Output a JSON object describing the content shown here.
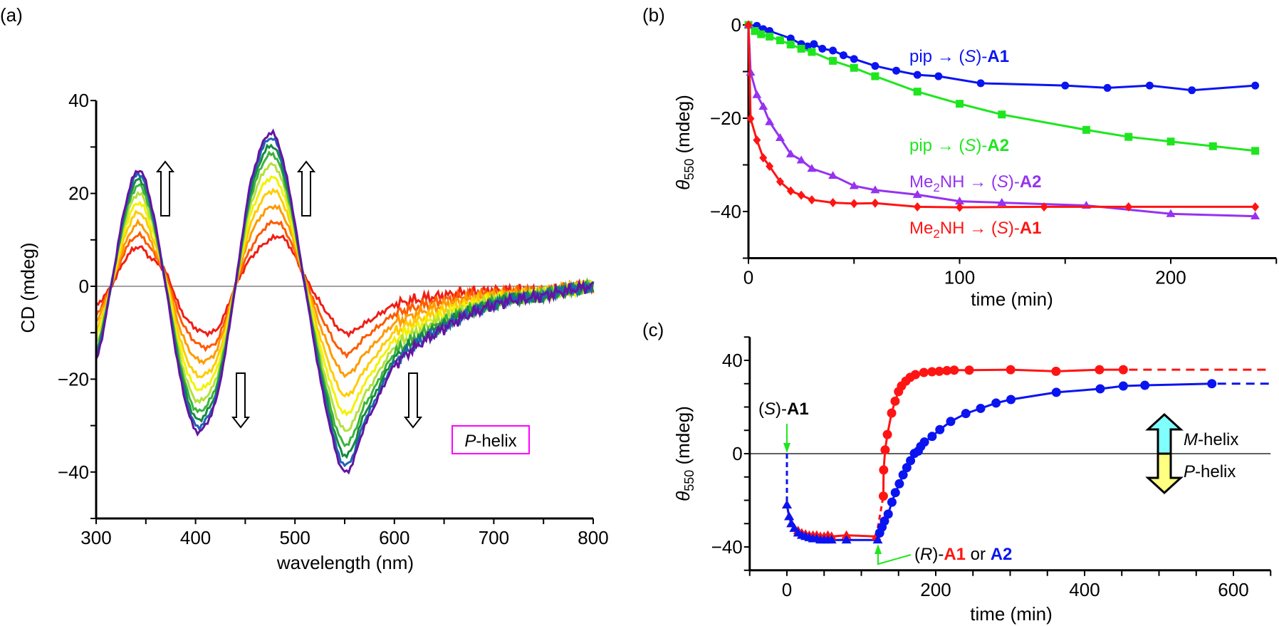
{
  "panel_labels": {
    "a": "(a)",
    "b": "(b)",
    "c": "(c)"
  },
  "chart_data": [
    {
      "type": "line",
      "xlabel": "wavelength (nm)",
      "ylabel": "CD (mdeg)",
      "xlim": [
        300,
        800
      ],
      "ylim": [
        -50,
        40
      ],
      "xticks": [
        "300",
        "400",
        "500",
        "600",
        "700",
        "800"
      ],
      "yticks": [
        "40",
        "20",
        "0",
        "−20",
        "−40"
      ],
      "x": [
        300,
        315,
        330,
        343,
        355,
        370,
        385,
        400,
        415,
        425,
        440,
        455,
        475,
        490,
        510,
        530,
        550,
        570,
        600,
        650,
        700,
        750,
        800
      ],
      "series": [
        {
          "color": "#f01e14",
          "values": [
            -4,
            0,
            6,
            8.5,
            6,
            3,
            -5,
            -9,
            -10,
            -8,
            0,
            6,
            10,
            10,
            2,
            -5,
            -10,
            -8,
            -4,
            -2,
            -1,
            -1,
            0
          ]
        },
        {
          "color": "#ff5a00",
          "values": [
            -6,
            0,
            8,
            11,
            8,
            2.5,
            -7,
            -12,
            -13,
            -10,
            0,
            8,
            13.5,
            12,
            1.5,
            -8,
            -14.5,
            -11,
            -6,
            -3,
            -1.5,
            -1,
            0
          ]
        },
        {
          "color": "#ff9a00",
          "values": [
            -7.5,
            0,
            9.5,
            13.5,
            9.5,
            2,
            -9.5,
            -15.5,
            -15.5,
            -11.5,
            0,
            11,
            17,
            14.5,
            1.5,
            -11,
            -19,
            -14.5,
            -8,
            -4,
            -2,
            -1.3,
            0
          ]
        },
        {
          "color": "#ffcc00",
          "values": [
            -9.4,
            0,
            11.4,
            15.9,
            11.4,
            1.7,
            -11.8,
            -18.9,
            -18.1,
            -13.4,
            0,
            13.2,
            20.4,
            16.8,
            1.1,
            -14,
            -23.5,
            -17.9,
            -9.9,
            -5.2,
            -2.4,
            -1.5,
            0
          ]
        },
        {
          "color": "#f2f200",
          "values": [
            -11,
            0,
            13,
            18,
            13,
            1.3,
            -13.7,
            -21.8,
            -20.4,
            -15,
            0,
            15.3,
            23.3,
            18.7,
            0.8,
            -16.6,
            -27.4,
            -20.8,
            -11.5,
            -6.1,
            -2.7,
            -1.6,
            0
          ]
        },
        {
          "color": "#b4e03c",
          "values": [
            -12.4,
            0,
            14.4,
            20,
            14.4,
            0.9,
            -15.5,
            -24.4,
            -22.6,
            -16.4,
            0,
            17.2,
            26.1,
            20.5,
            0.6,
            -19,
            -31,
            -23.4,
            -13.1,
            -6.9,
            -3.1,
            -1.7,
            0
          ]
        },
        {
          "color": "#3cb43c",
          "values": [
            -13.6,
            0,
            15.6,
            21.7,
            15.6,
            0.6,
            -17,
            -26.6,
            -24.4,
            -17.6,
            0,
            18.8,
            28.4,
            22,
            0.4,
            -21,
            -34,
            -25.6,
            -14.4,
            -7.6,
            -3.4,
            -1.8,
            0
          ]
        },
        {
          "color": "#148c3c",
          "values": [
            -14.6,
            0,
            16.6,
            23,
            16.6,
            0.4,
            -18.2,
            -28.4,
            -25.8,
            -18.6,
            0,
            20.1,
            30.2,
            23.2,
            0.2,
            -22.6,
            -36.4,
            -27.4,
            -15.4,
            -8.2,
            -3.6,
            -1.9,
            0
          ]
        },
        {
          "color": "#1e64b4",
          "values": [
            -15.4,
            0,
            17.4,
            24.2,
            17.4,
            0.2,
            -19.3,
            -29.9,
            -27.1,
            -19.4,
            0,
            21.2,
            31.9,
            24.3,
            0.1,
            -24,
            -38.5,
            -28.9,
            -16.4,
            -8.7,
            -3.9,
            -1.9,
            0
          ]
        },
        {
          "color": "#6414a0",
          "values": [
            -16,
            0,
            18,
            25,
            18,
            0,
            -20,
            -31,
            -28,
            -20,
            0,
            22,
            33,
            25,
            0,
            -25,
            -40,
            -30,
            -17,
            -9,
            -4,
            -2,
            0
          ]
        }
      ],
      "trend_arrows": [
        "up",
        "up",
        "down",
        "down"
      ],
      "box_label": {
        "italic": "P",
        "rest": "-helix",
        "color": "#ff00ff"
      }
    },
    {
      "type": "line",
      "xlabel": "time (min)",
      "ylabel": {
        "theta": "θ",
        "sub": "550",
        "rest": " (mdeg)"
      },
      "xlim": [
        0,
        250
      ],
      "ylim": [
        -50,
        0
      ],
      "xticks": [
        "0",
        "100",
        "200"
      ],
      "yticks": [
        "0",
        "−20",
        "−40"
      ],
      "series": [
        {
          "label": {
            "pre": "pip → (",
            "it": "S",
            "mid": ")-",
            "bold": "A1"
          },
          "color": "#0a14f0",
          "marker": "circle",
          "x": [
            0,
            4,
            7,
            10,
            20,
            25,
            28,
            31,
            35,
            40,
            45,
            50,
            60,
            70,
            80,
            90,
            110,
            150,
            170,
            190,
            210,
            240
          ],
          "y": [
            0,
            -0.2,
            -0.9,
            -1.3,
            -2.9,
            -4.1,
            -4.6,
            -4.1,
            -5.1,
            -5.5,
            -6.5,
            -7.3,
            -8.8,
            -9.8,
            -10.7,
            -11,
            -12.5,
            -13,
            -13.5,
            -13,
            -14,
            -13
          ]
        },
        {
          "label": {
            "pre": "pip → (",
            "it": "S",
            "mid": ")-",
            "bold": "A2"
          },
          "color": "#1ee61e",
          "marker": "square",
          "x": [
            0,
            3,
            6,
            10,
            15,
            20,
            25,
            30,
            40,
            50,
            60,
            80,
            100,
            120,
            160,
            180,
            200,
            220,
            240
          ],
          "y": [
            0,
            -1.3,
            -2,
            -2.5,
            -3.3,
            -4.2,
            -5.1,
            -5.8,
            -7.7,
            -9.2,
            -11,
            -14.3,
            -16.9,
            -19.2,
            -22.5,
            -24,
            -25,
            -26,
            -27
          ]
        },
        {
          "label": {
            "pre": "Me",
            "sub": "2",
            "pre2": "NH → (",
            "it": "S",
            "mid": ")-",
            "bold": "A2"
          },
          "color": "#9632f0",
          "marker": "triangle",
          "x": [
            0,
            1,
            4,
            7,
            10,
            15,
            20,
            25,
            30,
            40,
            50,
            60,
            80,
            100,
            120,
            160,
            200,
            240
          ],
          "y": [
            0,
            -10.2,
            -15,
            -17.5,
            -20.8,
            -24.2,
            -27.7,
            -29,
            -30.8,
            -32.3,
            -34.5,
            -35.4,
            -36.4,
            -37.8,
            -38.1,
            -38.7,
            -40.5,
            -41
          ]
        },
        {
          "label": {
            "pre": "Me",
            "sub": "2",
            "pre2": "NH → (",
            "it": "S",
            "mid": ")-",
            "bold": "A1"
          },
          "color": "#ff1414",
          "marker": "diamond",
          "x": [
            0,
            1,
            4,
            7,
            10,
            15,
            20,
            25,
            30,
            40,
            50,
            60,
            80,
            100,
            140,
            180,
            240
          ],
          "y": [
            0,
            -20.1,
            -24.7,
            -28.5,
            -30.3,
            -33.6,
            -35.6,
            -36.5,
            -37.5,
            -38.1,
            -38.3,
            -38.2,
            -39,
            -39.1,
            -39,
            -39,
            -39
          ]
        }
      ]
    },
    {
      "type": "line",
      "xlabel": "time (min)",
      "ylabel": {
        "theta": "θ",
        "sub": "550",
        "rest": " (mdeg)"
      },
      "xlim": [
        -50,
        650
      ],
      "ylim": [
        -50,
        50
      ],
      "xticks": [
        "0",
        "200",
        "400",
        "600"
      ],
      "yticks": [
        "40",
        "0",
        "−40"
      ],
      "series": [
        {
          "name": "A1",
          "color": "#ff1414",
          "x": [
            0,
            3,
            6,
            10,
            15,
            20,
            25,
            30,
            35,
            40,
            45,
            50,
            55,
            60,
            80,
            120,
            129.6,
            130,
            132,
            135,
            140.7,
            145.4,
            150,
            154,
            159.8,
            165.6,
            172.7,
            184,
            194.9,
            204.8,
            215,
            224.8,
            245,
            300.6,
            361.6,
            420,
            452
          ],
          "y": [
            -22,
            -27,
            -30,
            -32,
            -33,
            -34,
            -34.5,
            -35,
            -35,
            -35,
            -35.5,
            -35.5,
            -35,
            -35.5,
            -35,
            -35.5,
            -18.2,
            -7,
            1.6,
            8.2,
            17.4,
            22.5,
            26.6,
            29,
            31.1,
            32.7,
            33.9,
            34.8,
            35.1,
            35.3,
            35.6,
            35.8,
            35.8,
            36,
            35.3,
            36,
            36
          ]
        },
        {
          "name": "A2",
          "color": "#0a14f0",
          "x": [
            0,
            3,
            6,
            10,
            15,
            20,
            25,
            30,
            35,
            40,
            45,
            50,
            55,
            60,
            80,
            122,
            124.6,
            127.8,
            131.1,
            136.1,
            141.1,
            145.7,
            151.1,
            156.1,
            161.1,
            166.1,
            171.3,
            176.5,
            179.8,
            184.8,
            195.1,
            205.5,
            220.1,
            240.4,
            260.3,
            281,
            301,
            362,
            421,
            452,
            481,
            571
          ],
          "y": [
            -22,
            -27,
            -30,
            -32,
            -34,
            -35,
            -35.5,
            -36,
            -36.5,
            -36.5,
            -37,
            -37,
            -37,
            -37,
            -37,
            -37,
            -34,
            -31.5,
            -28.9,
            -25.9,
            -20.8,
            -16.7,
            -12.9,
            -9.1,
            -6,
            -3,
            0.1,
            1.1,
            3.1,
            5,
            7.4,
            10.3,
            13.8,
            17.2,
            19.4,
            21.7,
            23.2,
            26.3,
            27.8,
            29,
            29.3,
            30
          ]
        }
      ],
      "annotations": {
        "first_addition": {
          "pre": "(",
          "it": "S",
          "mid": ")-",
          "bold": "A1"
        },
        "second_addition": {
          "pre": "(",
          "it": "R",
          "mid": ")-",
          "bold1": "A1",
          "or": " or ",
          "bold2": "A2"
        },
        "helix_up": {
          "italic": "M",
          "rest": "-helix",
          "fill": "#80ffff"
        },
        "helix_down": {
          "italic": "P",
          "rest": "-helix",
          "fill": "#ffff80"
        },
        "arrow_color": "#1ee61e"
      }
    }
  ]
}
